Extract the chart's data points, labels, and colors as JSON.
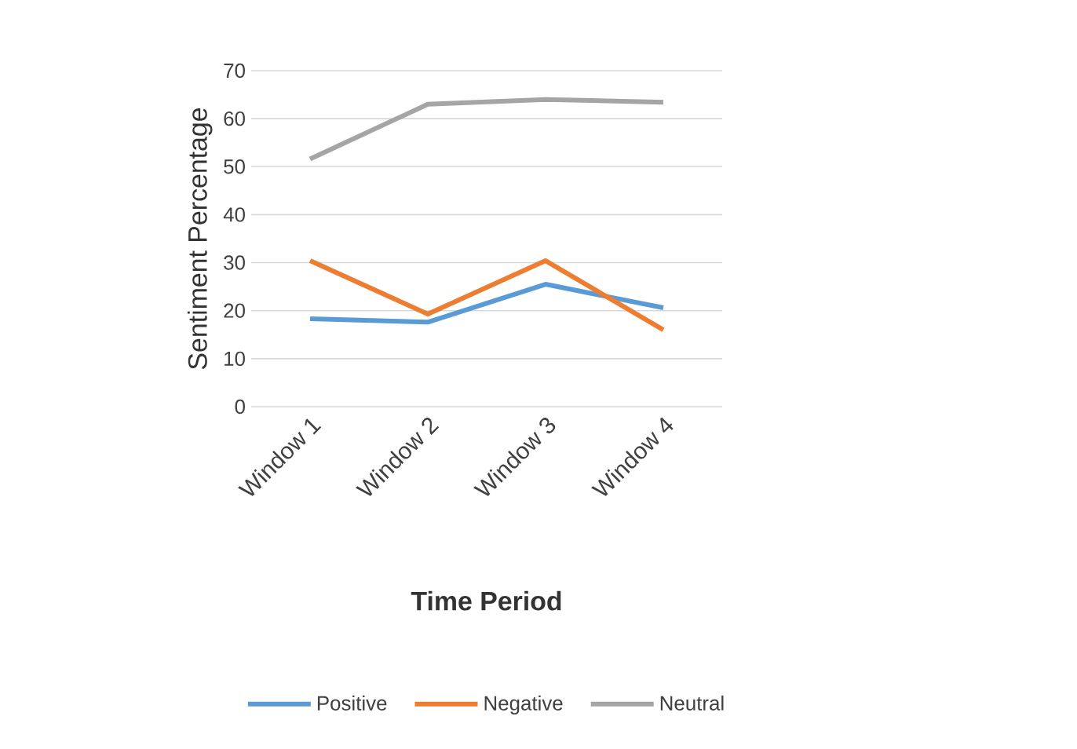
{
  "chart_data": {
    "type": "line",
    "xlabel": "Time Period",
    "ylabel": "Sentiment Percentage",
    "categories": [
      "Window 1",
      "Window 2",
      "Window 3",
      "Window 4"
    ],
    "series": [
      {
        "name": "Positive",
        "color": "#5b9bd5",
        "values": [
          18.3,
          17.6,
          25.5,
          20.6
        ]
      },
      {
        "name": "Negative",
        "color": "#ed7d31",
        "values": [
          30.4,
          19.3,
          30.4,
          16
        ]
      },
      {
        "name": "Neutral",
        "color": "#a5a5a5",
        "values": [
          51.6,
          63,
          64,
          63.4
        ]
      }
    ],
    "ylim": [
      0,
      70
    ],
    "yticks": [
      0,
      10,
      20,
      30,
      40,
      50,
      60,
      70
    ],
    "grid": "y",
    "legend": "bottom",
    "marker": "none",
    "line_style": "solid"
  }
}
